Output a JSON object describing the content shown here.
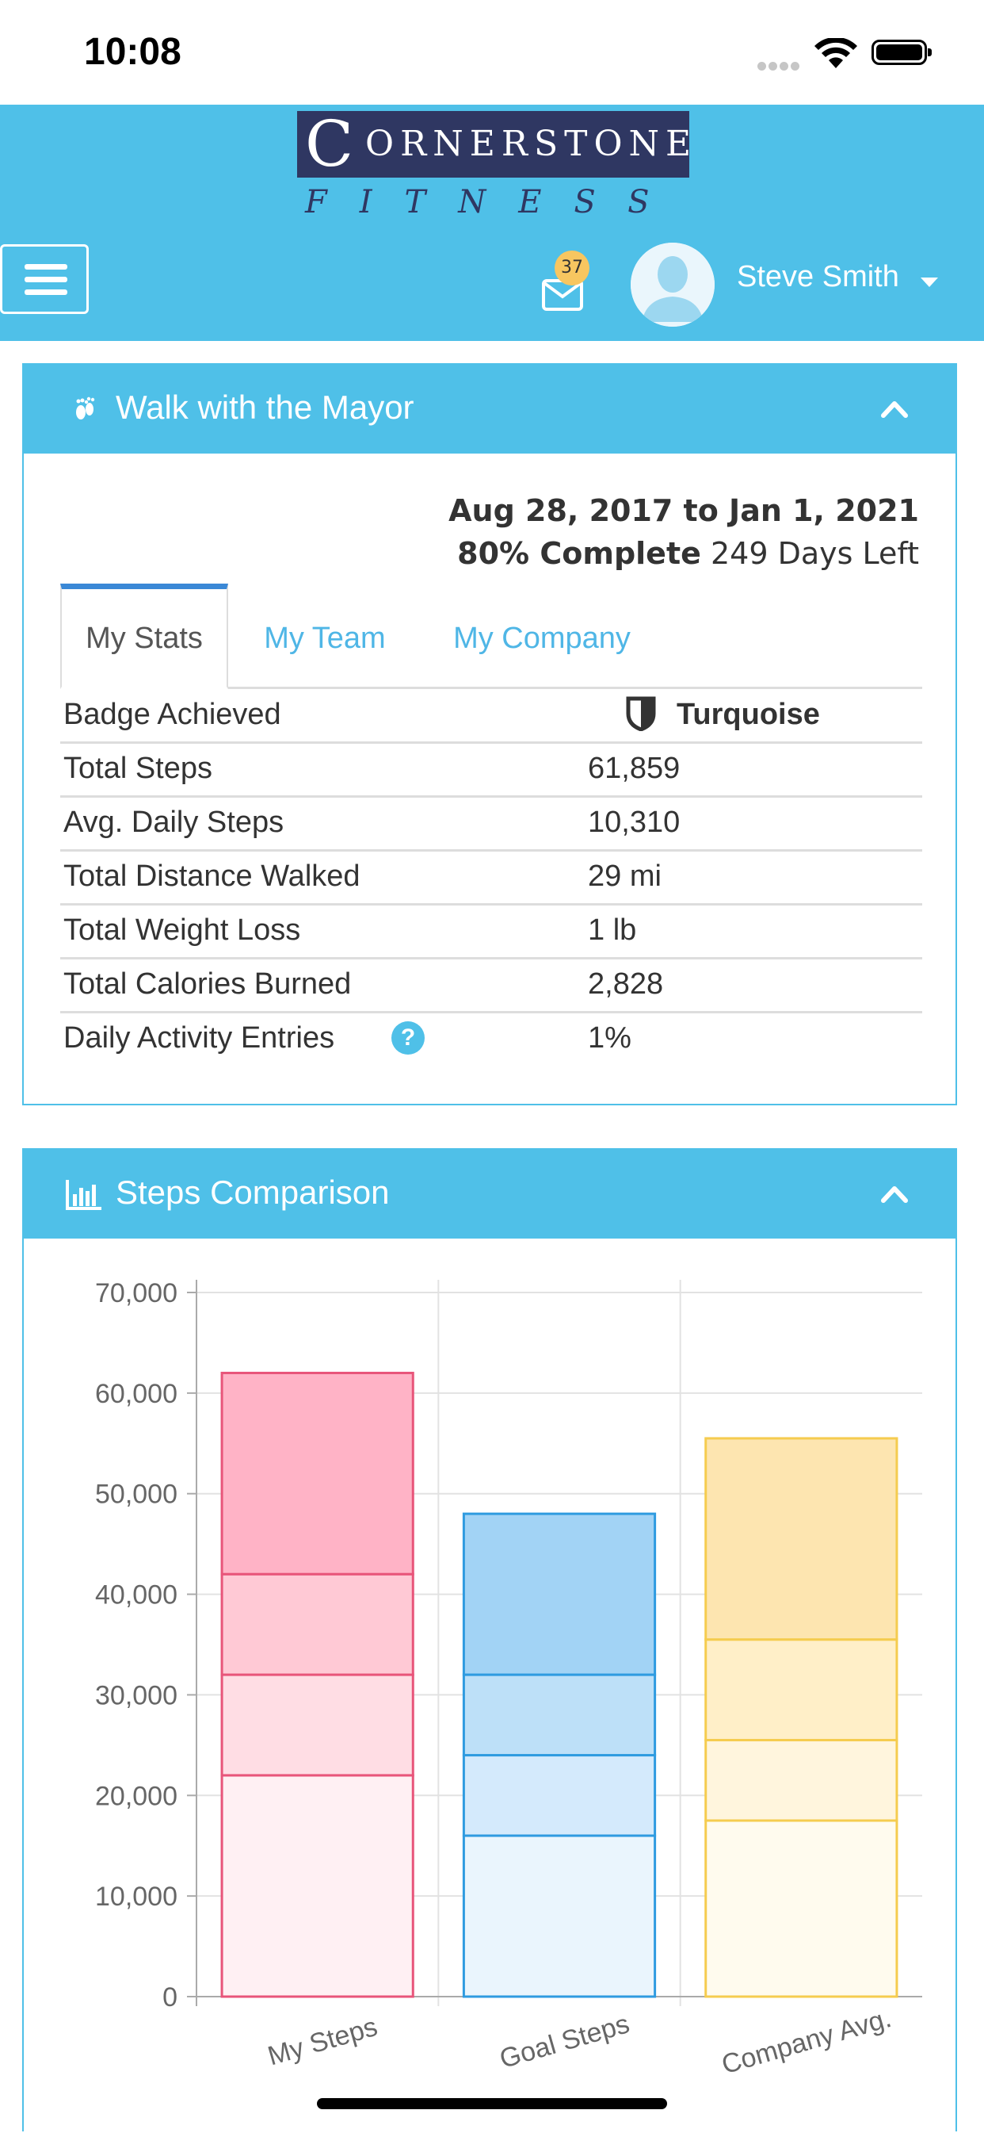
{
  "status_bar": {
    "time": "10:08"
  },
  "header": {
    "logo": {
      "first_letter": "C",
      "rest": "ORNERSTONE",
      "tagline": "FITNESS"
    },
    "mail_badge_count": "37",
    "user_name": "Steve Smith"
  },
  "challenge": {
    "title": "Walk with the Mayor",
    "date_range": "Aug 28, 2017 to Jan 1, 2021",
    "percent_complete": "80% Complete",
    "days_left": "249 Days Left",
    "tabs": [
      {
        "label": "My Stats"
      },
      {
        "label": "My Team"
      },
      {
        "label": "My Company"
      }
    ],
    "stats": {
      "badge": {
        "label": "Badge Achieved",
        "value": "Turquoise"
      },
      "total_steps": {
        "label": "Total Steps",
        "value": "61,859"
      },
      "avg_daily_steps": {
        "label": "Avg. Daily Steps",
        "value": "10,310"
      },
      "distance": {
        "label": "Total Distance Walked",
        "value": "29 mi"
      },
      "weight_loss": {
        "label": "Total Weight Loss",
        "value": "1 lb"
      },
      "calories": {
        "label": "Total Calories Burned",
        "value": "2,828"
      },
      "activity_entries": {
        "label": "Daily Activity Entries",
        "value": "1%"
      }
    }
  },
  "steps_panel": {
    "title": "Steps Comparison"
  },
  "chart_data": {
    "type": "bar",
    "stacked": true,
    "categories": [
      "My Steps",
      "Goal Steps",
      "Company Avg."
    ],
    "ylim": [
      0,
      70000
    ],
    "yticks": [
      "0",
      "10,000",
      "20,000",
      "30,000",
      "40,000",
      "50,000",
      "60,000",
      "70,000"
    ],
    "yticks_values": [
      0,
      10000,
      20000,
      30000,
      40000,
      50000,
      60000,
      70000
    ],
    "grid": true,
    "stacks": [
      {
        "segments": [
          22000,
          10000,
          10000,
          20000
        ],
        "total": 62000,
        "colors": [
          "#fff0f3",
          "#ffdde4",
          "#ffc9d5",
          "#ffb3c6"
        ],
        "border": "#e8557a"
      },
      {
        "segments": [
          16000,
          8000,
          8000,
          16000
        ],
        "total": 48000,
        "colors": [
          "#eaf5fd",
          "#d4eafc",
          "#bde0f8",
          "#a2d3f5"
        ],
        "border": "#2f9be0"
      },
      {
        "segments": [
          17500,
          8000,
          10000,
          20000
        ],
        "total": 55500,
        "colors": [
          "#fffbee",
          "#fff5dd",
          "#ffefc8",
          "#fde5b0"
        ],
        "border": "#f5cc4f"
      }
    ]
  }
}
